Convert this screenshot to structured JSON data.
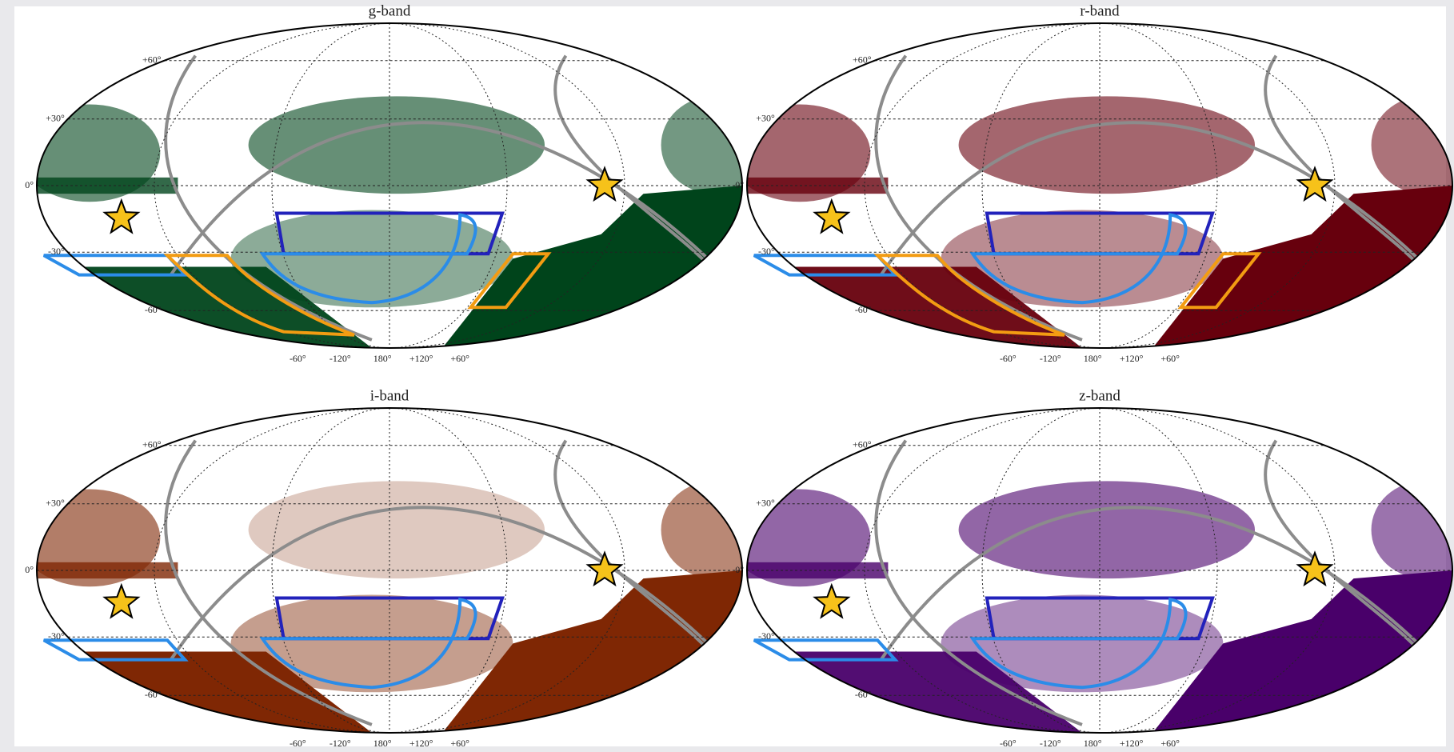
{
  "panels": [
    {
      "title": "g-band",
      "color": "#00441b"
    },
    {
      "title": "r-band",
      "color": "#67000d"
    },
    {
      "title": "i-band",
      "color": "#7f2704"
    },
    {
      "title": "z-band",
      "color": "#49006a"
    }
  ],
  "latitude_labels": [
    "+60°",
    "+30°",
    "0°",
    "-30°",
    "-60°"
  ],
  "longitude_labels": [
    "-60°",
    "-120°",
    "180°",
    "+120°",
    "+60°"
  ]
}
